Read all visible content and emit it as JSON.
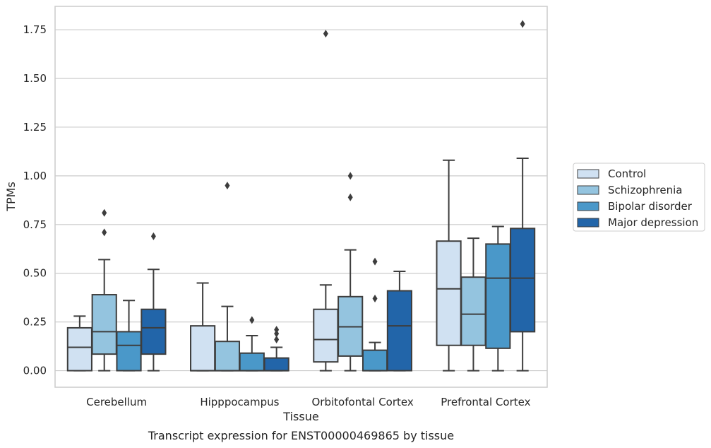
{
  "chart_data": {
    "type": "box",
    "title": "Transcript expression for ENST00000469865 by tissue",
    "xlabel": "Tissue",
    "ylabel": "TPMs",
    "ylim": [
      -0.085,
      1.87
    ],
    "yticks": [
      "0.00",
      "0.25",
      "0.50",
      "0.75",
      "1.00",
      "1.25",
      "1.50",
      "1.75"
    ],
    "grid": "horizontal",
    "legend_position": "right",
    "categories": [
      "Cerebellum",
      "Hipppocampus",
      "Orbitofontal Cortex",
      "Prefrontal Cortex"
    ],
    "series": [
      {
        "name": "Control",
        "color": "#d0e1f2",
        "boxes": [
          {
            "whislo": 0.0,
            "q1": 0.0,
            "med": 0.12,
            "q3": 0.22,
            "whishi": 0.28,
            "fliers": []
          },
          {
            "whislo": 0.0,
            "q1": 0.0,
            "med": 0.0,
            "q3": 0.23,
            "whishi": 0.45,
            "fliers": []
          },
          {
            "whislo": 0.0,
            "q1": 0.045,
            "med": 0.16,
            "q3": 0.315,
            "whishi": 0.44,
            "fliers": [
              1.73
            ]
          },
          {
            "whislo": 0.0,
            "q1": 0.13,
            "med": 0.42,
            "q3": 0.665,
            "whishi": 1.08,
            "fliers": []
          }
        ]
      },
      {
        "name": "Schizophrenia",
        "color": "#94c4df",
        "boxes": [
          {
            "whislo": 0.0,
            "q1": 0.085,
            "med": 0.2,
            "q3": 0.39,
            "whishi": 0.57,
            "fliers": [
              0.71,
              0.81
            ]
          },
          {
            "whislo": 0.0,
            "q1": 0.0,
            "med": 0.0,
            "q3": 0.15,
            "whishi": 0.33,
            "fliers": [
              0.95
            ]
          },
          {
            "whislo": 0.0,
            "q1": 0.075,
            "med": 0.225,
            "q3": 0.38,
            "whishi": 0.62,
            "fliers": [
              0.89,
              1.0
            ]
          },
          {
            "whislo": 0.0,
            "q1": 0.13,
            "med": 0.29,
            "q3": 0.48,
            "whishi": 0.68,
            "fliers": []
          }
        ]
      },
      {
        "name": "Bipolar disorder",
        "color": "#4a98c9",
        "boxes": [
          {
            "whislo": 0.0,
            "q1": 0.0,
            "med": 0.13,
            "q3": 0.2,
            "whishi": 0.36,
            "fliers": []
          },
          {
            "whislo": 0.0,
            "q1": 0.0,
            "med": 0.0,
            "q3": 0.09,
            "whishi": 0.18,
            "fliers": [
              0.26
            ]
          },
          {
            "whislo": 0.0,
            "q1": 0.0,
            "med": 0.0,
            "q3": 0.105,
            "whishi": 0.145,
            "fliers": [
              0.37,
              0.56
            ]
          },
          {
            "whislo": 0.0,
            "q1": 0.115,
            "med": 0.475,
            "q3": 0.65,
            "whishi": 0.74,
            "fliers": []
          }
        ]
      },
      {
        "name": "Major depression",
        "color": "#2265a9",
        "boxes": [
          {
            "whislo": 0.0,
            "q1": 0.085,
            "med": 0.22,
            "q3": 0.315,
            "whishi": 0.52,
            "fliers": [
              0.69
            ]
          },
          {
            "whislo": 0.0,
            "q1": 0.0,
            "med": 0.0,
            "q3": 0.065,
            "whishi": 0.12,
            "fliers": [
              0.16,
              0.19,
              0.21
            ]
          },
          {
            "whislo": 0.0,
            "q1": 0.0,
            "med": 0.23,
            "q3": 0.41,
            "whishi": 0.51,
            "fliers": []
          },
          {
            "whislo": 0.0,
            "q1": 0.2,
            "med": 0.475,
            "q3": 0.73,
            "whishi": 1.09,
            "fliers": [
              1.78
            ]
          }
        ]
      }
    ]
  }
}
